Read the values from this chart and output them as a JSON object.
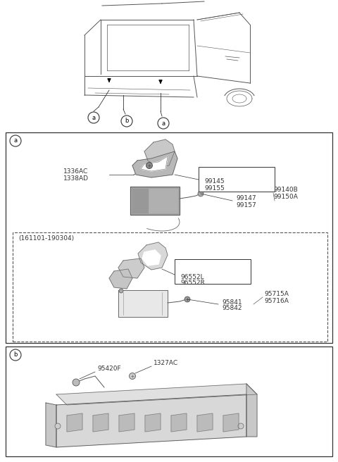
{
  "bg_color": "#ffffff",
  "fig_width": 4.8,
  "fig_height": 6.56,
  "dpi": 100,
  "lc": "#333333",
  "fs": 6.5,
  "section_a": {
    "label": "a",
    "parts_upper": {
      "l1": "1336AC",
      "l2": "1338AD",
      "l3": "99145",
      "l4": "99155",
      "l5": "99147",
      "l6": "99157",
      "l7": "99140B",
      "l8": "99150A"
    },
    "dashed_label": "(161101-190304)",
    "parts_lower": {
      "l1": "96552L",
      "l2": "96552R",
      "l3": "95841",
      "l4": "95842",
      "l5": "95715A",
      "l6": "95716A"
    }
  },
  "section_b": {
    "label": "b",
    "l1": "95420F",
    "l2": "1327AC"
  }
}
